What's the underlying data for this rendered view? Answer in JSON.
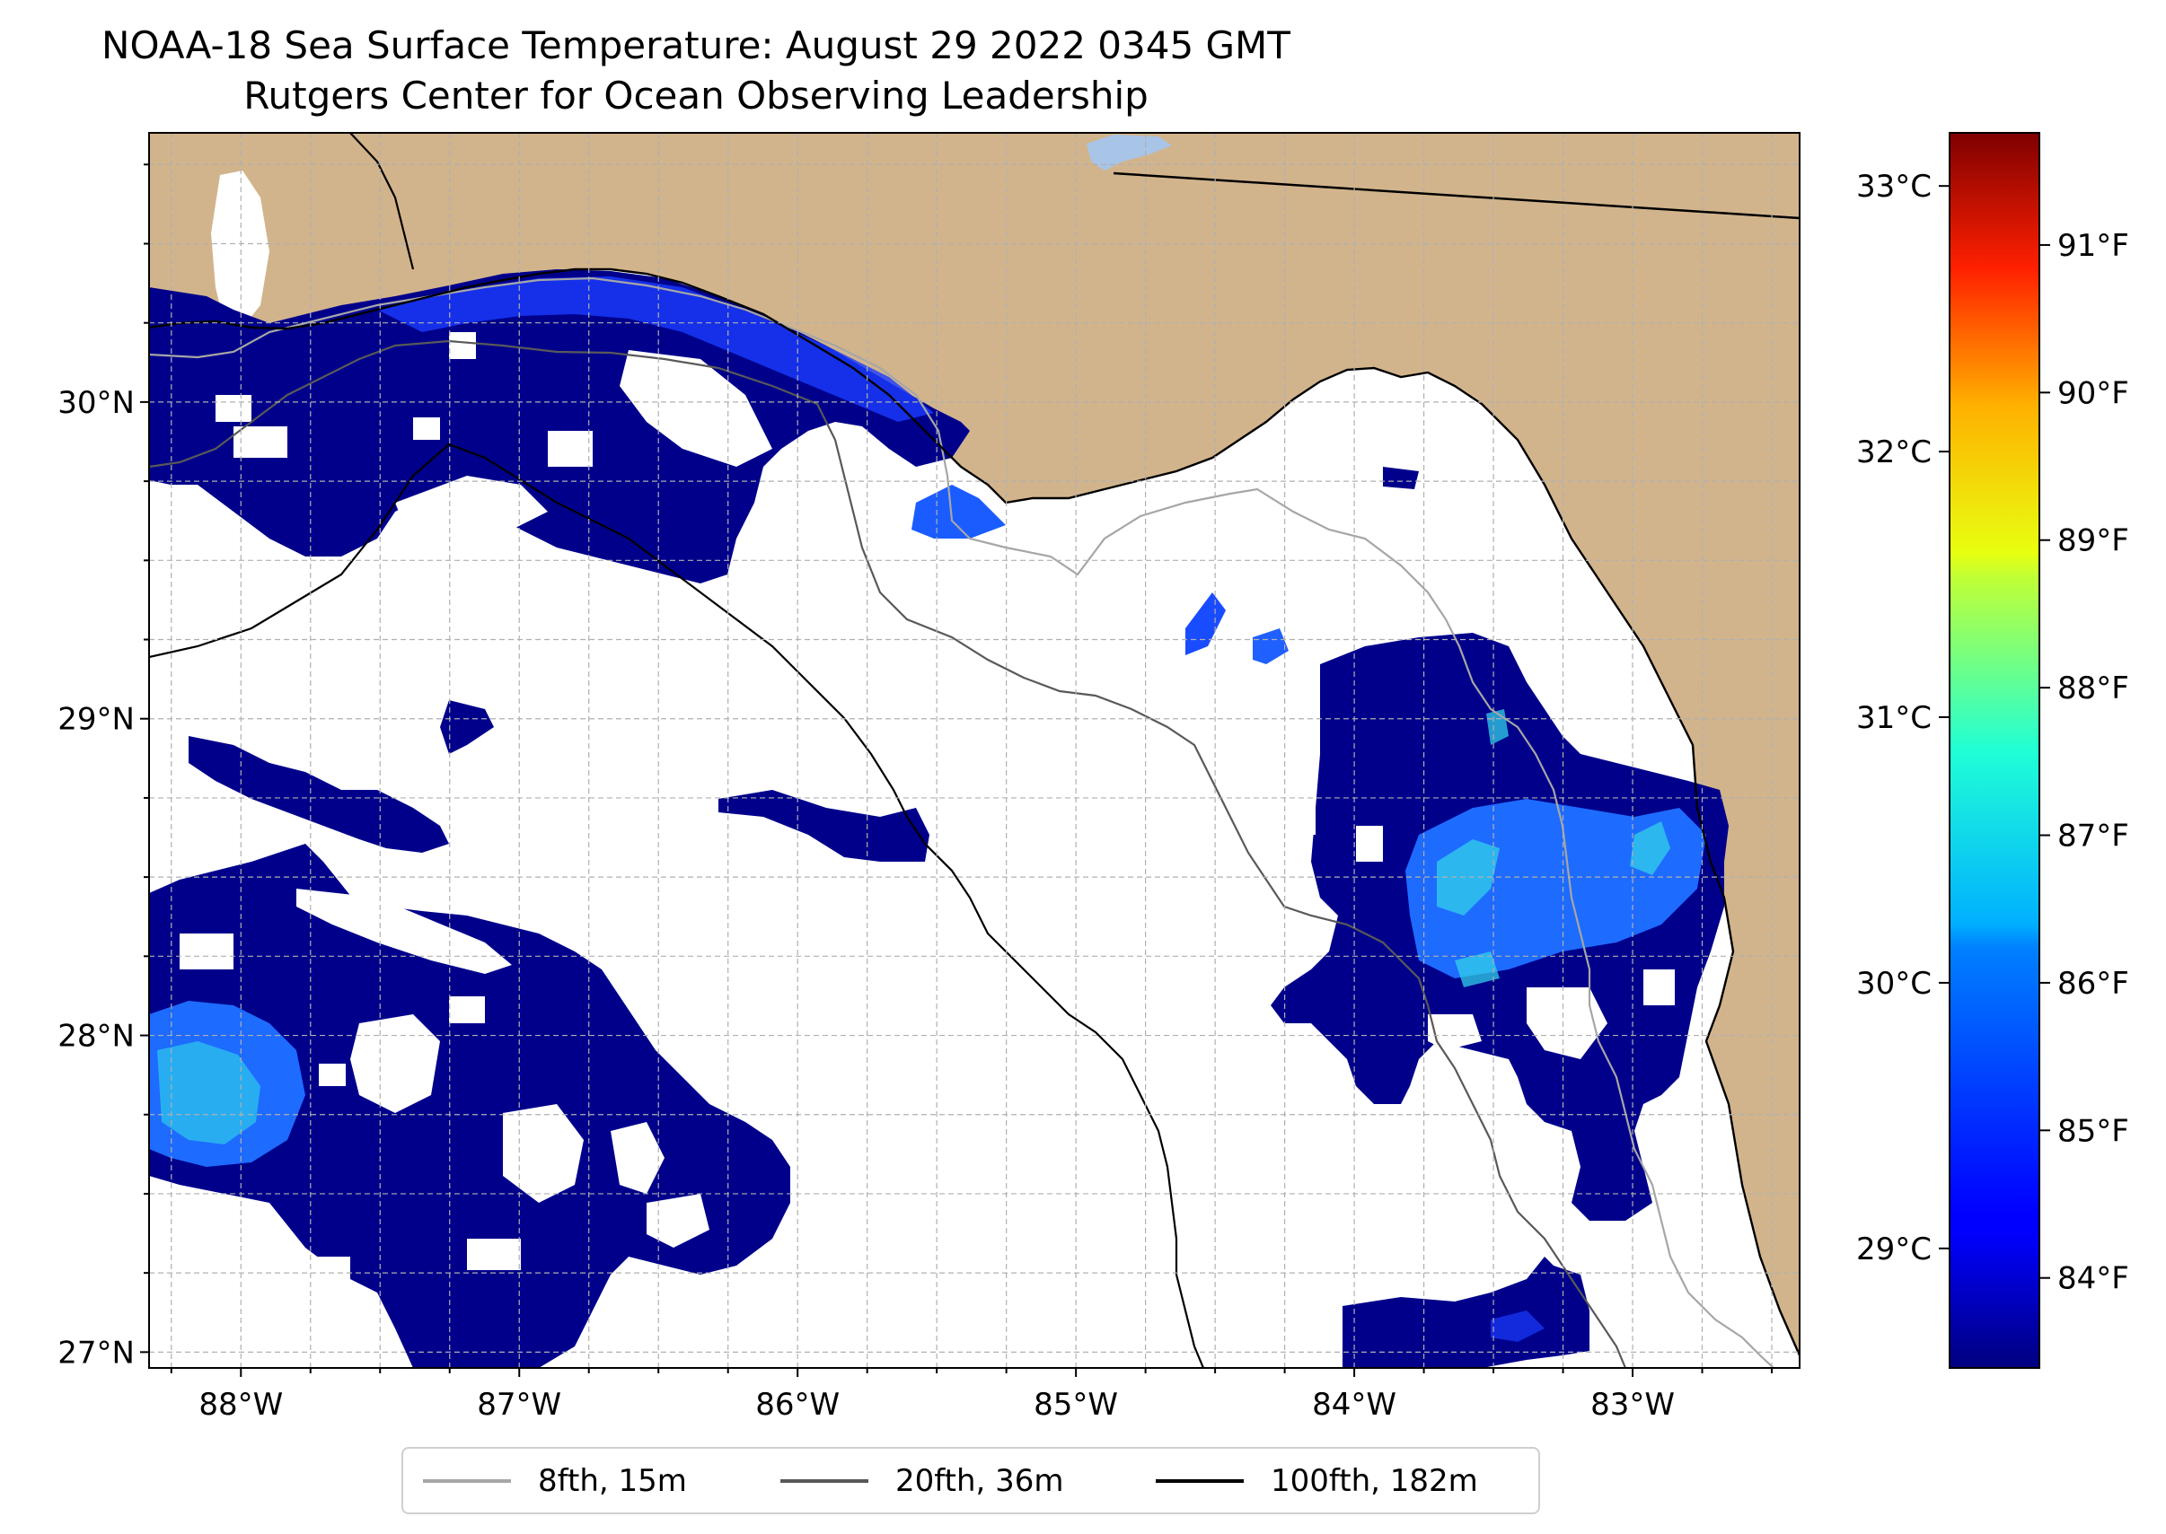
{
  "title": {
    "line1": "NOAA-18 Sea Surface Temperature: August 29 2022 0345 GMT",
    "line2": "Rutgers Center for Ocean Observing Leadership"
  },
  "colors": {
    "land": "#d2b48c",
    "no_data": "#ffffff",
    "sst_dark": "#00008b",
    "sst_blue": "#1a3cff",
    "sst_cyan": "#28d9e8",
    "lake": "#a8c4e6"
  },
  "axes": {
    "lat_ticks": [
      {
        "value": 30,
        "label": "30°N"
      },
      {
        "value": 29,
        "label": "29°N"
      },
      {
        "value": 28,
        "label": "28°N"
      },
      {
        "value": 27,
        "label": "27°N"
      }
    ],
    "lon_ticks": [
      {
        "value": -88,
        "label": "88°W"
      },
      {
        "value": -87,
        "label": "87°W"
      },
      {
        "value": -86,
        "label": "86°W"
      },
      {
        "value": -85,
        "label": "85°W"
      },
      {
        "value": -84,
        "label": "84°W"
      },
      {
        "value": -83,
        "label": "83°W"
      }
    ],
    "lon_range": [
      -88.33,
      -82.4
    ],
    "lat_range": [
      26.95,
      30.85
    ],
    "grid": true
  },
  "colorbar": {
    "celsius_ticks": [
      {
        "value": 29,
        "label": "29°C"
      },
      {
        "value": 30,
        "label": "30°C"
      },
      {
        "value": 31,
        "label": "31°C"
      },
      {
        "value": 32,
        "label": "32°C"
      },
      {
        "value": 33,
        "label": "33°C"
      }
    ],
    "fahrenheit_ticks": [
      {
        "value": 84,
        "label": "84°F"
      },
      {
        "value": 85,
        "label": "85°F"
      },
      {
        "value": 86,
        "label": "86°F"
      },
      {
        "value": 87,
        "label": "87°F"
      },
      {
        "value": 88,
        "label": "88°F"
      },
      {
        "value": 89,
        "label": "89°F"
      },
      {
        "value": 90,
        "label": "90°F"
      },
      {
        "value": 91,
        "label": "91°F"
      }
    ],
    "range_celsius": [
      28.55,
      33.2
    ],
    "colormap": "jet"
  },
  "legend": {
    "items": [
      {
        "label": "8fth, 15m",
        "color": "#a6a6a6"
      },
      {
        "label": "20fth, 36m",
        "color": "#595959"
      },
      {
        "label": "100fth, 182m",
        "color": "#000000"
      }
    ],
    "placement": "bottom-center"
  }
}
